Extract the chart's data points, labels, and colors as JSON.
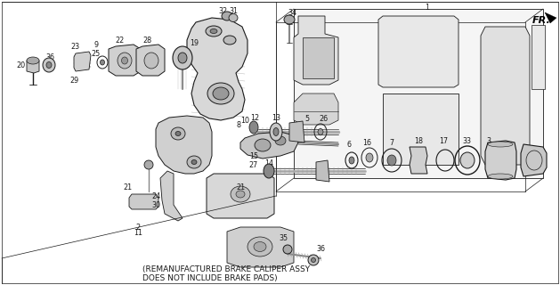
{
  "background_color": "#ffffff",
  "footnote_line1": "(REMANUFACTURED BRAKE CALIPER ASSY",
  "footnote_line2": "DOES NOT INCLUDE BRAKE PADS)",
  "footnote_fontsize": 6.5,
  "fr_label": "FR.",
  "figsize": [
    6.29,
    3.2
  ],
  "dpi": 100,
  "line_color": "#1a1a1a",
  "fill_light": "#e8e8e8",
  "fill_mid": "#cccccc",
  "fill_dark": "#999999"
}
